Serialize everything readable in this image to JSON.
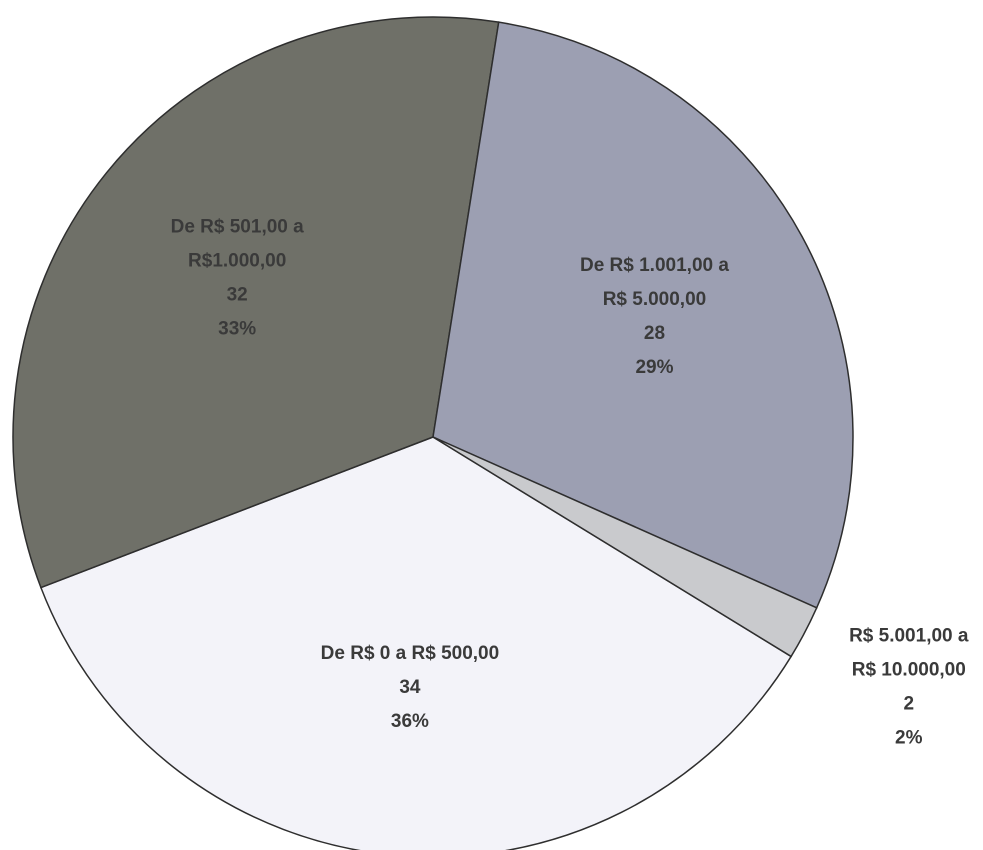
{
  "chart_data": {
    "type": "pie",
    "categories": [
      [
        "De R$ 0 a R$ 500,00"
      ],
      [
        "De R$ 501,00 a",
        "R$1.000,00"
      ],
      [
        "De R$ 1.001,00 a",
        "R$ 5.000,00"
      ],
      [
        "R$ 5.001,00 a",
        "R$ 10.000,00"
      ]
    ],
    "values": [
      34,
      32,
      28,
      2
    ],
    "percent_labels": [
      "36%",
      "33%",
      "29%",
      "2%"
    ],
    "colors": [
      "#f3f3f9",
      "#6f7068",
      "#9c9fb2",
      "#c9cacd"
    ]
  }
}
